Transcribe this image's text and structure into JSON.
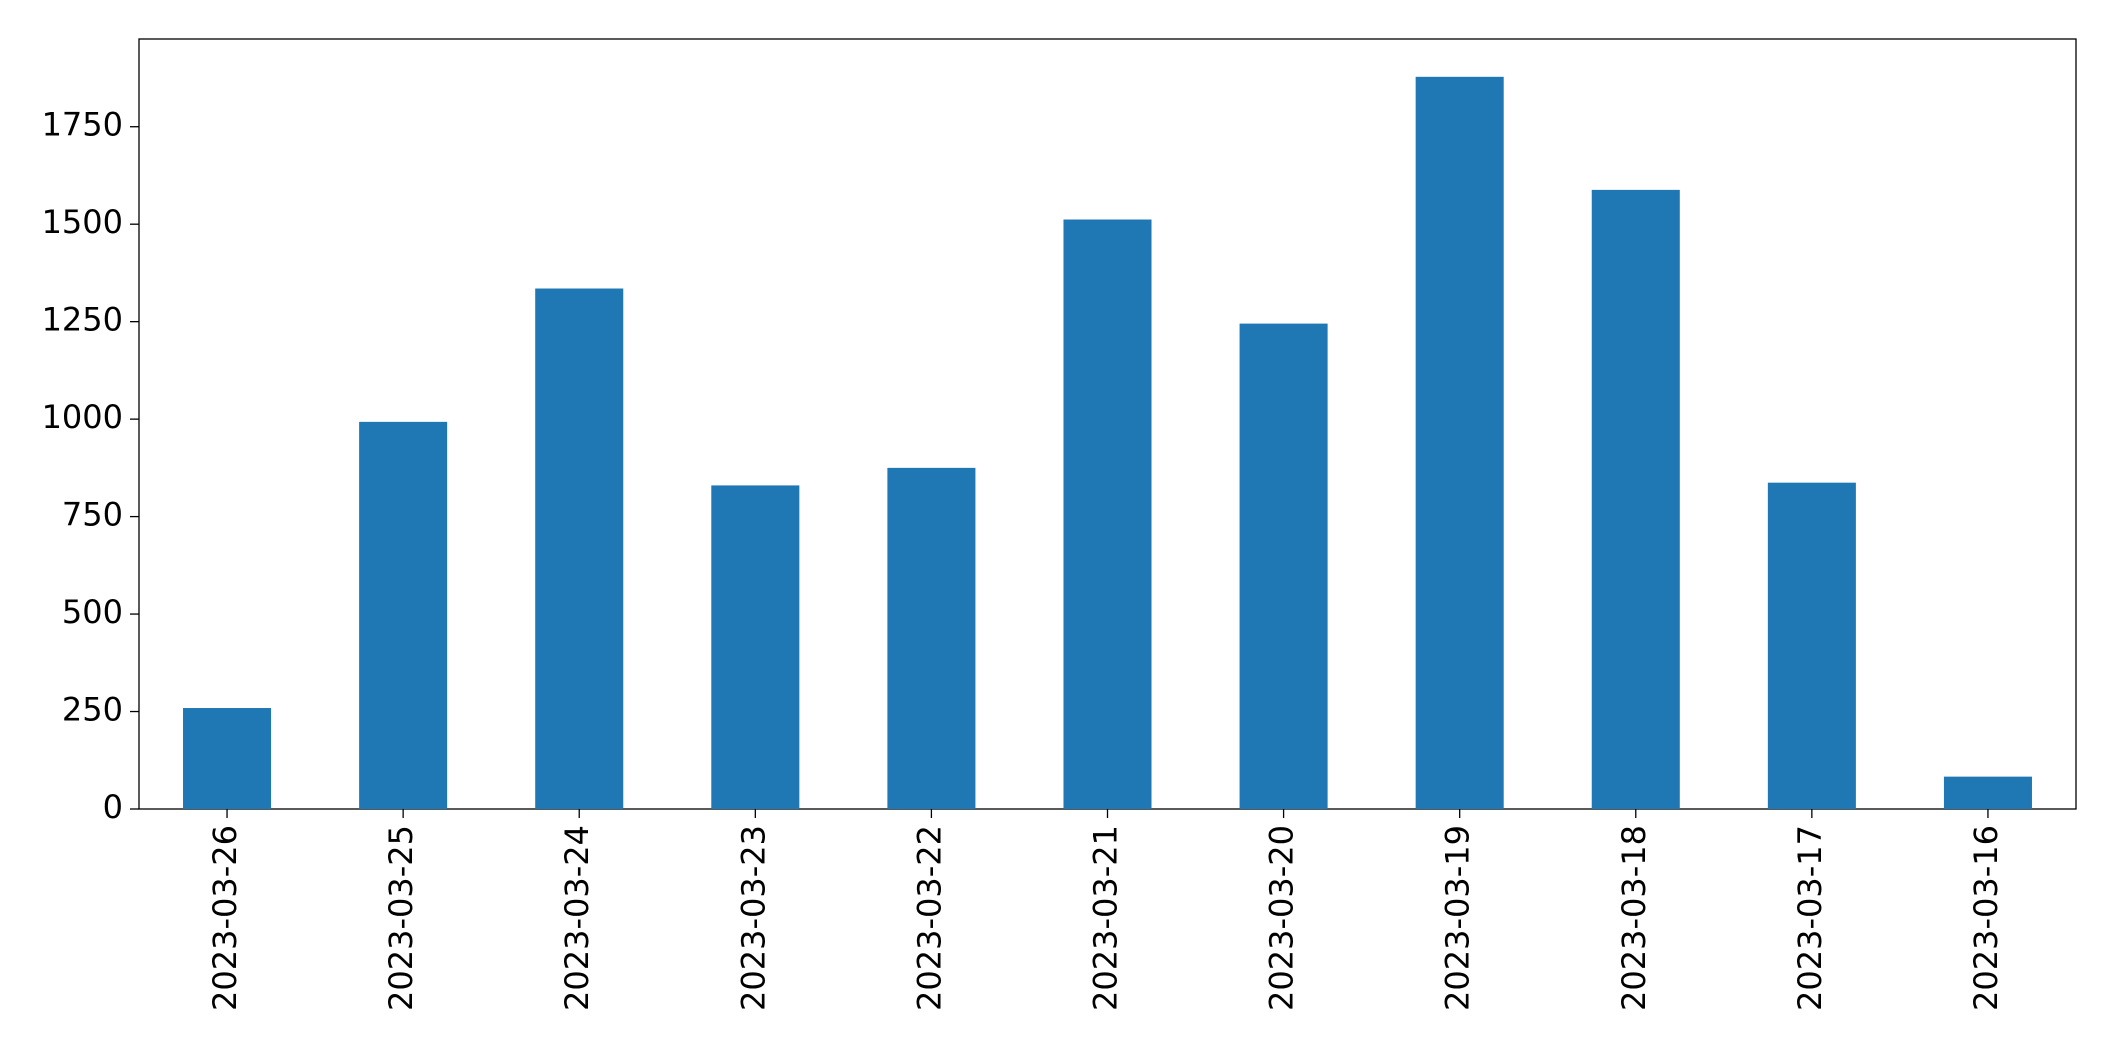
{
  "chart_data": {
    "type": "bar",
    "categories": [
      "2023-03-26",
      "2023-03-25",
      "2023-03-24",
      "2023-03-23",
      "2023-03-22",
      "2023-03-21",
      "2023-03-20",
      "2023-03-19",
      "2023-03-18",
      "2023-03-17",
      "2023-03-16"
    ],
    "values": [
      259,
      993,
      1335,
      830,
      875,
      1512,
      1245,
      1878,
      1588,
      837,
      83
    ],
    "color": "#1f77b4",
    "ylim": [
      0,
      1975
    ],
    "yticks": [
      0,
      250,
      500,
      750,
      1000,
      1250,
      1500,
      1750
    ],
    "grid": false
  }
}
